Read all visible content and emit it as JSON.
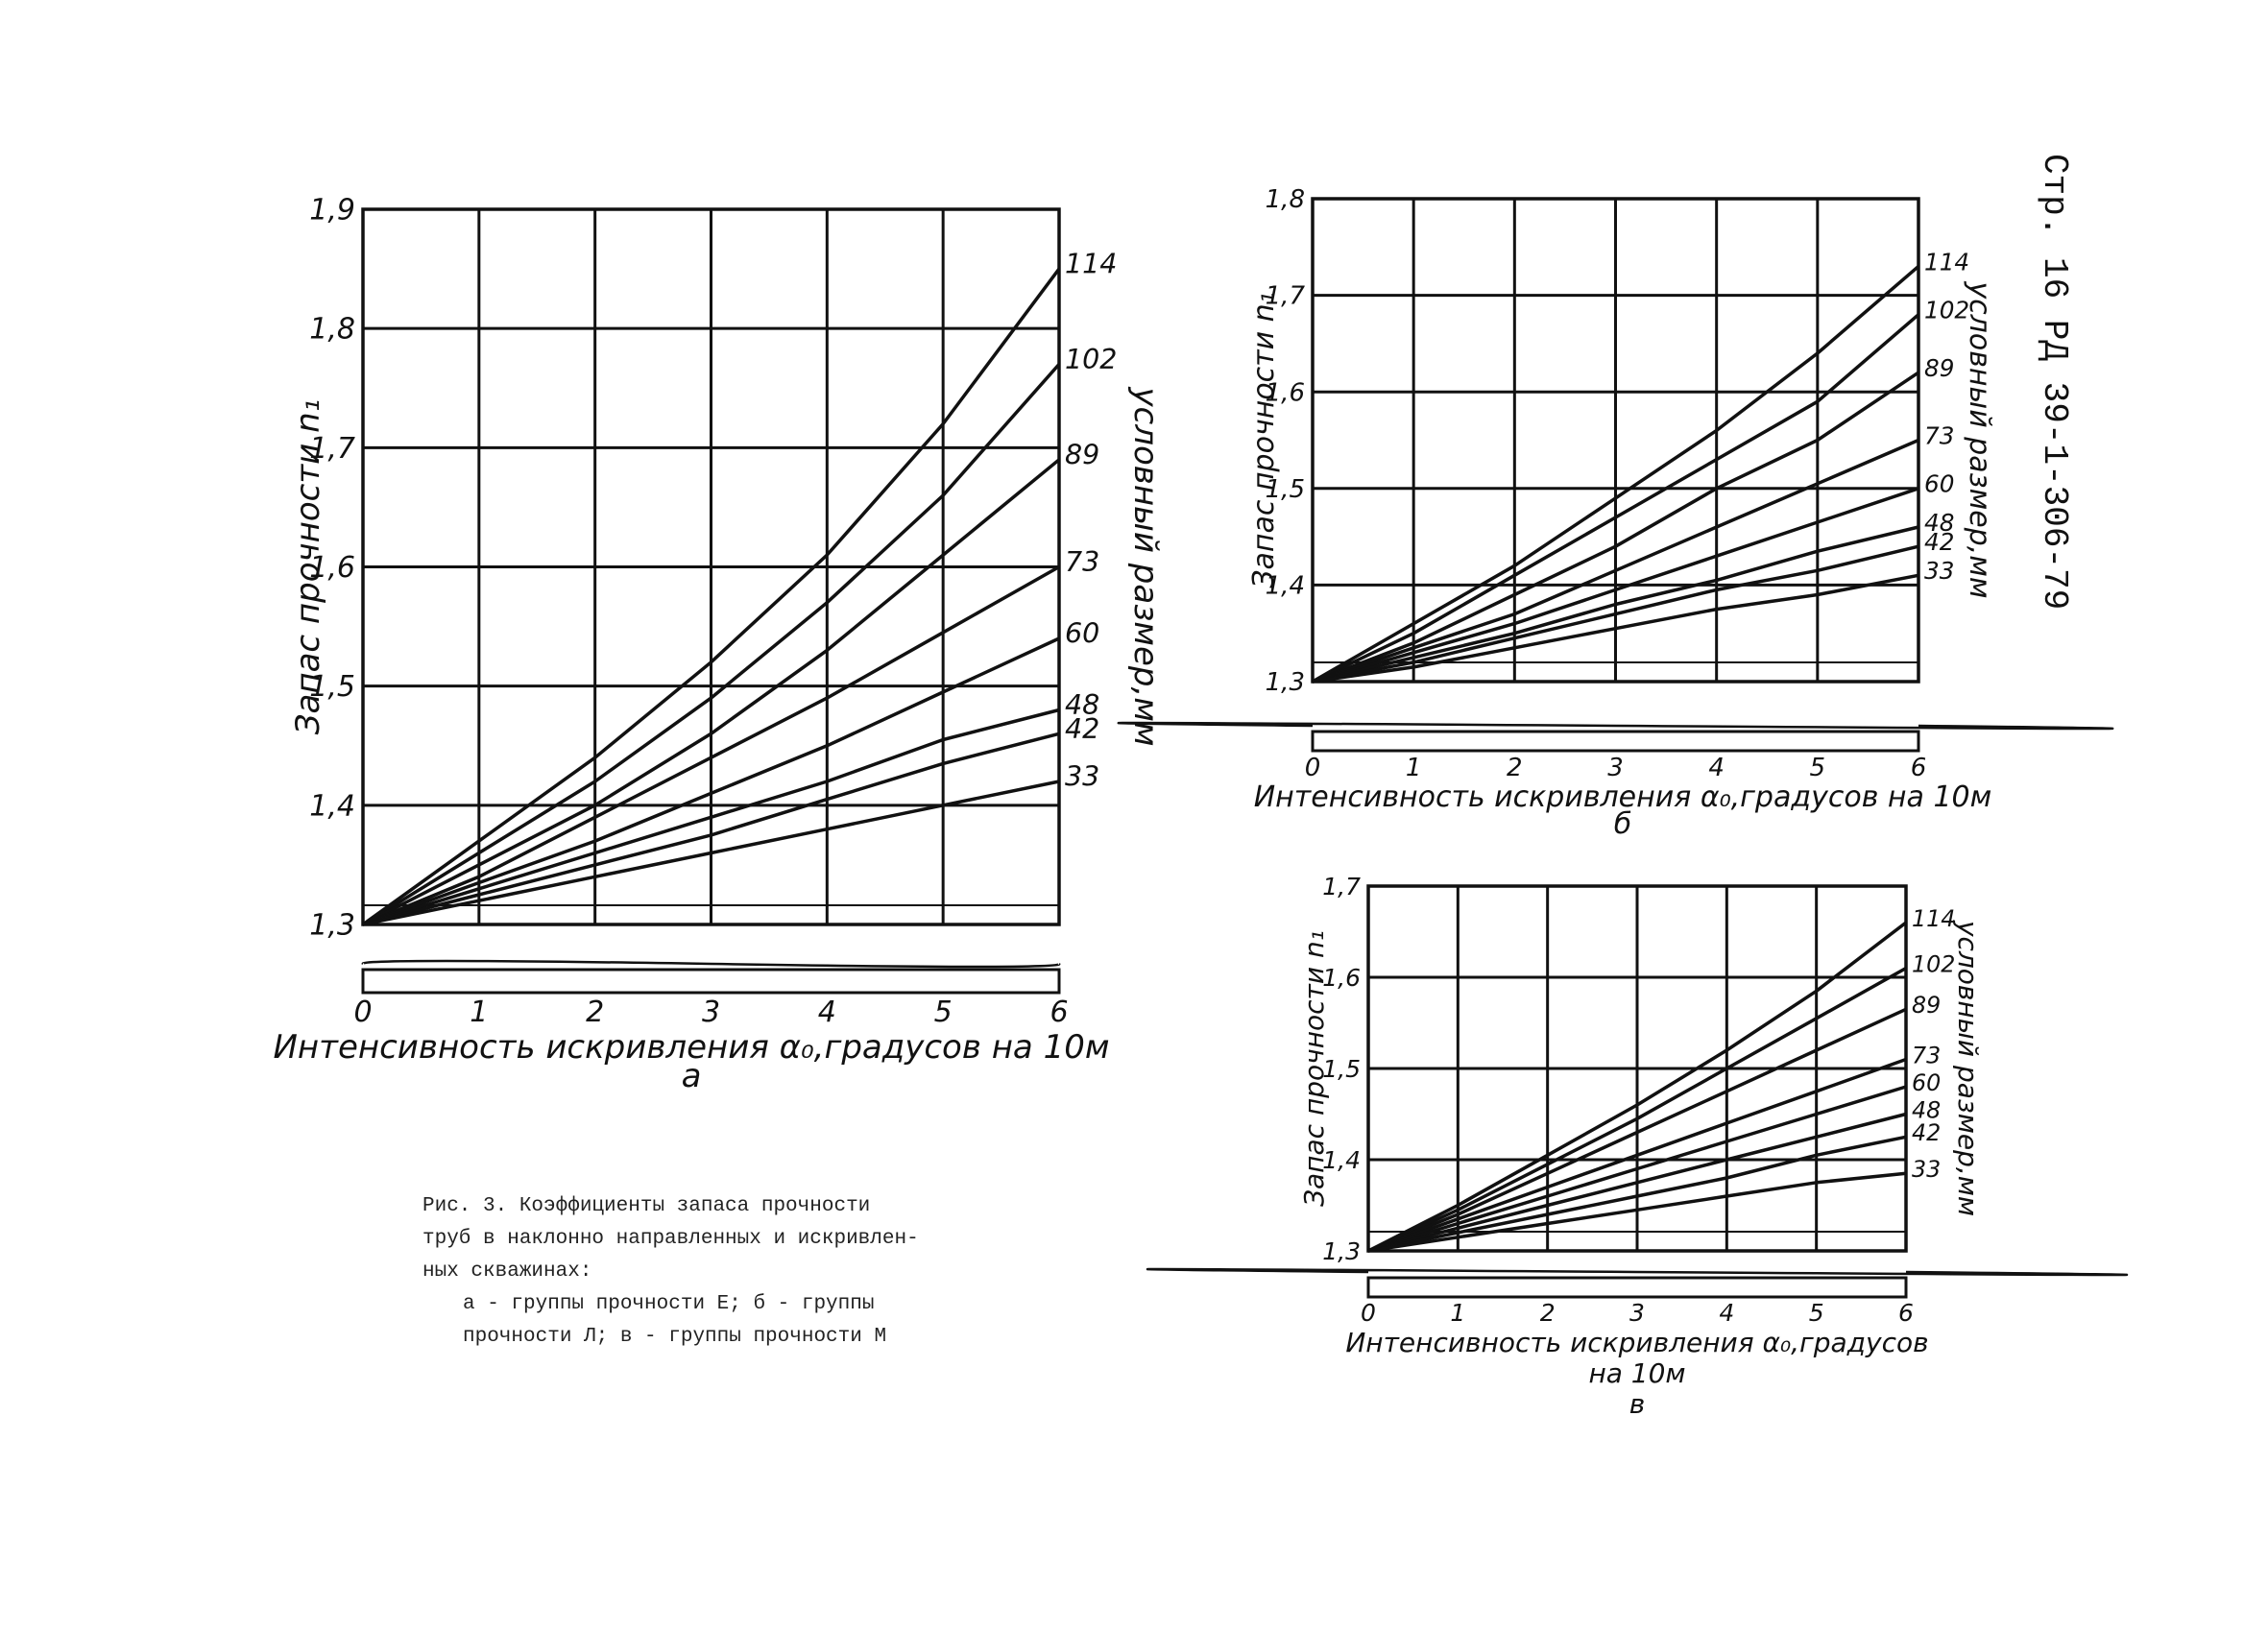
{
  "page_header": "Стр. 16 РД 39-1-306-79",
  "caption": {
    "line1": "Рис. 3. Коэффициенты запаса прочности",
    "line2": "труб в наклонно направленных и искривлен-",
    "line3": "ных скважинах:",
    "line4": "а - группы прочности Е; б - группы",
    "line5": "прочности Л; в - группы прочности М"
  },
  "chart_data": [
    {
      "type": "line",
      "panel_label": "а",
      "xlabel": "Интенсивность искривления α₀,градусов на 10м",
      "ylabel": "Запас прочности n₁",
      "right_label": "условный размер,мм",
      "xlim": [
        0,
        6
      ],
      "ylim": [
        1.3,
        1.9
      ],
      "xticks": [
        "0",
        "1",
        "2",
        "3",
        "4",
        "5",
        "6"
      ],
      "yticks": [
        "1,3",
        "1,4",
        "1,5",
        "1,6",
        "1,7",
        "1,8",
        "1,9"
      ],
      "grid": true,
      "x": [
        0,
        1,
        2,
        3,
        4,
        5,
        6
      ],
      "series": [
        {
          "name": "114",
          "values": [
            1.3,
            1.37,
            1.44,
            1.52,
            1.61,
            1.72,
            1.85
          ]
        },
        {
          "name": "102",
          "values": [
            1.3,
            1.36,
            1.42,
            1.49,
            1.57,
            1.66,
            1.77
          ]
        },
        {
          "name": "89",
          "values": [
            1.3,
            1.35,
            1.4,
            1.46,
            1.53,
            1.61,
            1.69
          ]
        },
        {
          "name": "73",
          "values": [
            1.3,
            1.34,
            1.39,
            1.44,
            1.49,
            1.545,
            1.6
          ]
        },
        {
          "name": "60",
          "values": [
            1.3,
            1.335,
            1.37,
            1.41,
            1.45,
            1.495,
            1.54
          ]
        },
        {
          "name": "48",
          "values": [
            1.3,
            1.33,
            1.36,
            1.39,
            1.42,
            1.455,
            1.48
          ]
        },
        {
          "name": "42",
          "values": [
            1.3,
            1.325,
            1.35,
            1.375,
            1.405,
            1.435,
            1.46
          ]
        },
        {
          "name": "33",
          "values": [
            1.3,
            1.32,
            1.34,
            1.36,
            1.38,
            1.4,
            1.42
          ]
        }
      ]
    },
    {
      "type": "line",
      "panel_label": "б",
      "xlabel": "Интенсивность искривления α₀,градусов на 10м",
      "ylabel": "Запас прочности n₁",
      "right_label": "условный размер,мм",
      "xlim": [
        0,
        6
      ],
      "ylim": [
        1.3,
        1.8
      ],
      "xticks": [
        "0",
        "1",
        "2",
        "3",
        "4",
        "5",
        "6"
      ],
      "yticks": [
        "1,3",
        "1,4",
        "1,5",
        "1,6",
        "1,7",
        "1,8"
      ],
      "grid": true,
      "x": [
        0,
        1,
        2,
        3,
        4,
        5,
        6
      ],
      "series": [
        {
          "name": "114",
          "values": [
            1.3,
            1.36,
            1.42,
            1.49,
            1.56,
            1.64,
            1.73
          ]
        },
        {
          "name": "102",
          "values": [
            1.3,
            1.35,
            1.41,
            1.47,
            1.53,
            1.59,
            1.68
          ]
        },
        {
          "name": "89",
          "values": [
            1.3,
            1.34,
            1.39,
            1.44,
            1.5,
            1.55,
            1.62
          ]
        },
        {
          "name": "73",
          "values": [
            1.3,
            1.335,
            1.37,
            1.415,
            1.46,
            1.505,
            1.55
          ]
        },
        {
          "name": "60",
          "values": [
            1.3,
            1.33,
            1.36,
            1.395,
            1.43,
            1.465,
            1.5
          ]
        },
        {
          "name": "48",
          "values": [
            1.3,
            1.325,
            1.35,
            1.38,
            1.405,
            1.435,
            1.46
          ]
        },
        {
          "name": "42",
          "values": [
            1.3,
            1.32,
            1.345,
            1.37,
            1.395,
            1.415,
            1.44
          ]
        },
        {
          "name": "33",
          "values": [
            1.3,
            1.315,
            1.335,
            1.355,
            1.375,
            1.39,
            1.41
          ]
        }
      ]
    },
    {
      "type": "line",
      "panel_label": "в",
      "xlabel": "Интенсивность искривления α₀,градусов",
      "xlabel2": "на 10м",
      "ylabel": "Запас прочности n₁",
      "right_label": "условный размер,мм",
      "xlim": [
        0,
        6
      ],
      "ylim": [
        1.3,
        1.7
      ],
      "xticks": [
        "0",
        "1",
        "2",
        "3",
        "4",
        "5",
        "6"
      ],
      "yticks": [
        "1,3",
        "1,4",
        "1,5",
        "1,6",
        "1,7"
      ],
      "grid": true,
      "x": [
        0,
        1,
        2,
        3,
        4,
        5,
        6
      ],
      "series": [
        {
          "name": "114",
          "values": [
            1.3,
            1.35,
            1.405,
            1.46,
            1.52,
            1.585,
            1.66
          ]
        },
        {
          "name": "102",
          "values": [
            1.3,
            1.345,
            1.395,
            1.445,
            1.5,
            1.555,
            1.61
          ]
        },
        {
          "name": "89",
          "values": [
            1.3,
            1.34,
            1.385,
            1.43,
            1.475,
            1.52,
            1.565
          ]
        },
        {
          "name": "73",
          "values": [
            1.3,
            1.335,
            1.37,
            1.405,
            1.44,
            1.475,
            1.51
          ]
        },
        {
          "name": "60",
          "values": [
            1.3,
            1.33,
            1.36,
            1.39,
            1.42,
            1.45,
            1.48
          ]
        },
        {
          "name": "48",
          "values": [
            1.3,
            1.325,
            1.35,
            1.375,
            1.4,
            1.425,
            1.45
          ]
        },
        {
          "name": "42",
          "values": [
            1.3,
            1.32,
            1.34,
            1.36,
            1.38,
            1.405,
            1.425
          ]
        },
        {
          "name": "33",
          "values": [
            1.3,
            1.315,
            1.33,
            1.345,
            1.36,
            1.375,
            1.385
          ]
        }
      ]
    }
  ]
}
